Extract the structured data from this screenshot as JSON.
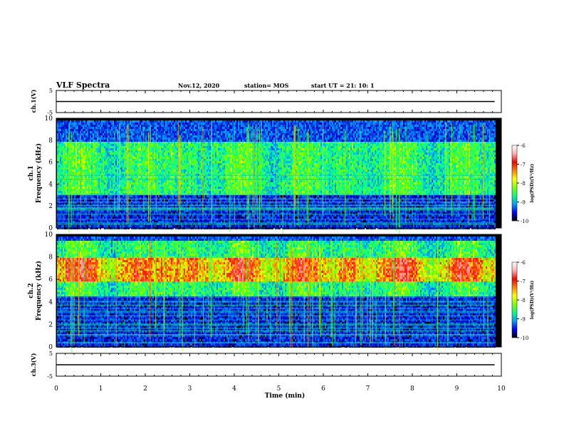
{
  "header": {
    "title": "VLF Spectra",
    "date": "Nov.12, 2020",
    "station": "station= MOS",
    "start": "start  UT  =   21: 10: 1"
  },
  "chart_data": [
    {
      "type": "line",
      "panel": "ch1-voltage",
      "ylabel": "ch.1(V)",
      "ylim": [
        -5,
        5
      ],
      "yticks": [
        5,
        -5
      ],
      "xlim": [
        0,
        10
      ],
      "series": [
        {
          "x": [
            0,
            9.85
          ],
          "values": [
            0,
            0
          ]
        }
      ],
      "line_color": "#000000"
    },
    {
      "type": "heatmap",
      "panel": "ch1-spectrogram",
      "ylabel": "Frequency (kHz)",
      "ylabel_prefix": "ch.1",
      "ylim": [
        0,
        10
      ],
      "yticks": [
        0,
        2,
        4,
        6,
        8,
        10
      ],
      "xlim": [
        0,
        10
      ],
      "x_data_extent": [
        0,
        9.85
      ],
      "intense_band_khz": [
        8,
        9.2
      ],
      "background_band_khz": [
        3,
        8
      ],
      "colorbar": {
        "label": "log(PSD)(V²/Hz)",
        "range": [
          -10,
          -6
        ],
        "ticks": [
          -6,
          -7,
          -8,
          -9,
          -10
        ],
        "colors": [
          "#000000",
          "#0000ff",
          "#00a0ff",
          "#00ff80",
          "#80ff00",
          "#ffff00",
          "#ff8000",
          "#ff0000",
          "#ffb0b0",
          "#ffffff"
        ]
      }
    },
    {
      "type": "heatmap",
      "panel": "ch2-spectrogram",
      "ylabel": "Frequency (kHz)",
      "ylabel_prefix": "ch.2",
      "ylim": [
        0,
        10
      ],
      "yticks": [
        0,
        2,
        4,
        6,
        8,
        10
      ],
      "xlim": [
        0,
        10
      ],
      "x_data_extent": [
        0,
        9.85
      ],
      "intense_band_khz": [
        6,
        8
      ],
      "background_band_khz": [
        4.5,
        9.5
      ],
      "colorbar": {
        "label": "log(PSD)(V²/Hz)",
        "range": [
          -10,
          -6
        ],
        "ticks": [
          -6,
          -7,
          -8,
          -9,
          -10
        ],
        "colors": [
          "#000000",
          "#0000ff",
          "#00a0ff",
          "#00ff80",
          "#80ff00",
          "#ffff00",
          "#ff8000",
          "#ff0000",
          "#ffb0b0",
          "#ffffff"
        ]
      }
    },
    {
      "type": "line",
      "panel": "ch3-voltage",
      "ylabel": "ch.3(V)",
      "ylim": [
        -5,
        5
      ],
      "yticks": [
        5,
        -5
      ],
      "xlim": [
        0,
        10
      ],
      "xlabel": "Time  (min)",
      "xticks": [
        0,
        1,
        2,
        3,
        4,
        5,
        6,
        7,
        8,
        9,
        10
      ],
      "series": [
        {
          "x": [
            0,
            9.85
          ],
          "values": [
            0,
            0
          ]
        }
      ],
      "line_color": "#000000"
    }
  ]
}
